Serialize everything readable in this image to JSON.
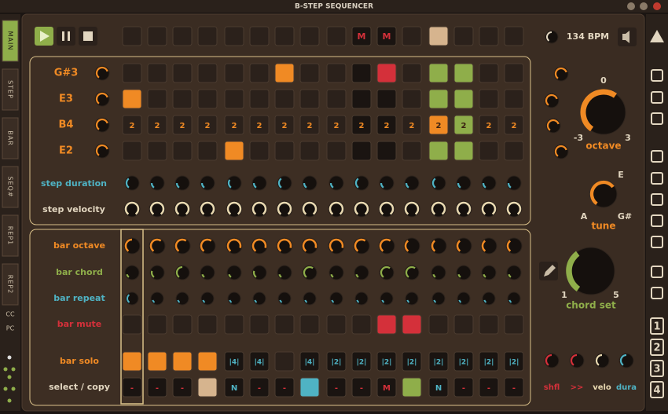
{
  "window": {
    "title": "B-STEP SEQUENCER"
  },
  "left_tabs": [
    "MAIN",
    "STEP",
    "BAR",
    "SEQ#",
    "REP1",
    "REP2",
    "CC",
    "PC"
  ],
  "transport": {
    "bpm": "134 BPM"
  },
  "top_row": [
    null,
    null,
    null,
    null,
    null,
    null,
    null,
    null,
    null,
    "M",
    "M",
    null,
    null,
    null,
    null,
    null
  ],
  "steps": {
    "rows": [
      {
        "note": "G#3"
      },
      {
        "note": "E3"
      },
      {
        "note": "B4",
        "labels": [
          "2",
          "2",
          "2",
          "2",
          "2",
          "2",
          "2",
          "2",
          "2",
          "2",
          "2",
          "2",
          "2",
          "2",
          "2",
          "2"
        ]
      },
      {
        "note": "E2"
      }
    ],
    "duration_label": "step duration",
    "velocity_label": "step velocity"
  },
  "octave": {
    "label": "octave",
    "center": "0",
    "min": "-3",
    "max": "3"
  },
  "tune": {
    "label": "tune",
    "top": "E",
    "left": "A",
    "right": "G#"
  },
  "chord_set": {
    "label": "chord set",
    "min": "1",
    "max": "5"
  },
  "bars": {
    "octave_label": "bar octave",
    "chord_label": "bar chord",
    "repeat_label": "bar repeat",
    "mute_label": "bar mute",
    "solo_label": "bar solo",
    "solo": [
      null,
      null,
      null,
      null,
      "|4|",
      "|4|",
      null,
      "|4|",
      "|2|",
      "|2|",
      "|2|",
      "|2|",
      "|2|",
      "|2|",
      "|2|",
      "|2|"
    ],
    "select_label": "select / copy",
    "select": [
      "-",
      "-",
      "-",
      null,
      "N",
      "-",
      "-",
      null,
      "-",
      "-",
      "M",
      null,
      "N",
      "-",
      "-",
      "-"
    ]
  },
  "bottom_knobs": [
    "shfl",
    ">>",
    "velo",
    "dura"
  ],
  "sidebar_numbers": [
    "1",
    "2",
    "3",
    "4"
  ]
}
